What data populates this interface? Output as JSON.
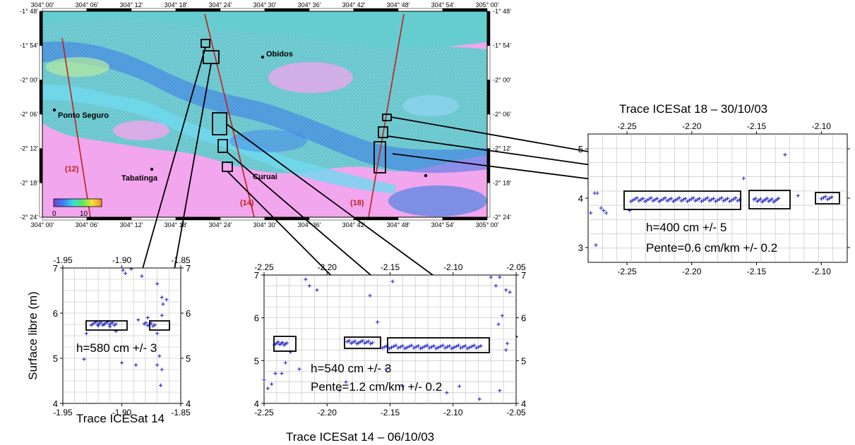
{
  "map": {
    "top_ticks": [
      "304° 00'",
      "304° 06'",
      "304° 12'",
      "304° 18'",
      "304° 24'",
      "304° 30'",
      "304° 36'",
      "304° 42'",
      "304° 48'",
      "304° 54'",
      "305° 00'"
    ],
    "bottom_ticks": [
      "304° 00'",
      "304° 06'",
      "304° 12'",
      "304° 18'",
      "304° 24'",
      "304° 30'",
      "304° 36'",
      "304° 42'",
      "304° 48'",
      "304° 54'",
      "305° 00'"
    ],
    "left_ticks": [
      "-1° 48'",
      "-1° 54'",
      "-2° 00'",
      "-2° 06'",
      "-2° 12'",
      "-2° 18'",
      "-2° 24'"
    ],
    "right_ticks": [
      "-1° 48'",
      "-1° 54'",
      "-2° 00'",
      "-2° 06'",
      "-2° 12'",
      "-2° 18'",
      "-2° 24'"
    ],
    "places": [
      {
        "name": "Obidos"
      },
      {
        "name": "Ponto Seguro"
      },
      {
        "name": "Tabatinga"
      },
      {
        "name": "Curuai"
      }
    ],
    "tracks": [
      "(12)",
      "(14)",
      "(18)"
    ],
    "colorbar": {
      "min": "0",
      "max": "10"
    },
    "colors": {
      "background": "#f2a6ee",
      "track": "#c0201a",
      "track_label": "#c0201a"
    }
  },
  "panel_bl": {
    "top_ticks": [
      "-1.95",
      "-1.90",
      "-1.85"
    ],
    "bottom_ticks": [
      "-1.95",
      "-1.90",
      "-1.85"
    ],
    "y_ticks": [
      "7",
      "6",
      "5",
      "4"
    ],
    "ylabel": "Surface libre (m)",
    "caption": "Trace ICESat 14",
    "annotation": "h=580 cm +/- 3"
  },
  "panel_bm": {
    "top_ticks": [
      "-2.25",
      "-2.20",
      "-2.15",
      "-2.10",
      "-2.05"
    ],
    "bottom_ticks": [
      "-2.25",
      "-2.20",
      "-2.15",
      "-2.10",
      "-2.05"
    ],
    "y_ticks": [
      "7",
      "6",
      "5",
      "4"
    ],
    "caption": "Trace ICESat 14 – 06/10/03",
    "annotation1": "h=540 cm +/- 3",
    "annotation2": "Pente=1.2 cm/km +/- 0.2"
  },
  "panel_r": {
    "title": "Trace ICESat 18 – 30/10/03",
    "top_ticks": [
      "-2.25",
      "-2.20",
      "-2.15",
      "-2.10"
    ],
    "bottom_ticks": [
      "-2.25",
      "-2.20",
      "-2.15",
      "-2.10"
    ],
    "y_ticks": [
      "5",
      "4",
      "3"
    ],
    "annotation1": "h=400 cm +/- 5",
    "annotation2": "Pente=0.6 cm/km +/- 0.2"
  },
  "chart_data": [
    {
      "type": "scatter",
      "caption": "Trace ICESat 14",
      "ylabel": "Surface libre (m)",
      "xlim": [
        -1.95,
        -1.85
      ],
      "ylim": [
        4,
        7
      ],
      "points": [
        [
          -1.932,
          4.98
        ],
        [
          -1.93,
          5.55
        ],
        [
          -1.897,
          6.88
        ],
        [
          -1.899,
          6.95
        ],
        [
          -1.892,
          6.98
        ],
        [
          -1.883,
          6.82
        ],
        [
          -1.878,
          5.9
        ],
        [
          -1.87,
          6.65
        ],
        [
          -1.866,
          6.35
        ],
        [
          -1.865,
          6.2
        ],
        [
          -1.862,
          6.3
        ],
        [
          -1.866,
          5.95
        ],
        [
          -1.87,
          5.55
        ],
        [
          -1.868,
          5.05
        ],
        [
          -1.87,
          4.85
        ],
        [
          -1.866,
          4.75
        ],
        [
          -1.867,
          4.4
        ],
        [
          -1.9,
          4.9
        ],
        [
          -1.888,
          4.85
        ],
        [
          -1.905,
          5.6
        ],
        [
          -1.886,
          5.85
        ],
        [
          -1.91,
          5.7
        ],
        [
          -1.915,
          5.75
        ],
        [
          -1.92,
          5.72
        ]
      ],
      "clusters": [
        {
          "x_range": [
            -1.926,
            -1.905
          ],
          "y": 5.77,
          "count": 16
        },
        {
          "x_range": [
            -1.881,
            -1.872
          ],
          "y": 5.75,
          "count": 7
        }
      ]
    },
    {
      "type": "scatter",
      "caption": "Trace ICESat 14 – 06/10/03",
      "xlim": [
        -2.25,
        -2.05
      ],
      "ylim": [
        4,
        7
      ],
      "points": [
        [
          -2.25,
          4.55
        ],
        [
          -2.247,
          4.35
        ],
        [
          -2.244,
          4.45
        ],
        [
          -2.241,
          4.7
        ],
        [
          -2.236,
          4.7
        ],
        [
          -2.233,
          4.95
        ],
        [
          -2.229,
          5.2
        ],
        [
          -2.222,
          4.8
        ],
        [
          -2.217,
          6.9
        ],
        [
          -2.214,
          6.75
        ],
        [
          -2.208,
          6.65
        ],
        [
          -2.19,
          4.3
        ],
        [
          -2.185,
          4.5
        ],
        [
          -2.166,
          6.52
        ],
        [
          -2.16,
          5.9
        ],
        [
          -2.148,
          6.85
        ],
        [
          -2.153,
          4.8
        ],
        [
          -2.14,
          4.4
        ],
        [
          -2.105,
          4.25
        ],
        [
          -2.095,
          4.4
        ],
        [
          -2.079,
          4.1
        ],
        [
          -2.066,
          6.75
        ],
        [
          -2.07,
          6.95
        ],
        [
          -2.063,
          6.95
        ],
        [
          -2.058,
          6.65
        ],
        [
          -2.061,
          6.05
        ],
        [
          -2.064,
          5.85
        ],
        [
          -2.057,
          5.4
        ],
        [
          -2.058,
          5.25
        ],
        [
          -2.063,
          4.3
        ],
        [
          -2.055,
          6.6
        ]
      ],
      "clusters": [
        {
          "x_range": [
            -2.242,
            -2.232
          ],
          "y": 5.4,
          "count": 10
        },
        {
          "x_range": [
            -2.184,
            -2.164
          ],
          "y": 5.43,
          "count": 14
        },
        {
          "x_range": [
            -2.156,
            -2.078
          ],
          "y": 5.32,
          "count": 45
        }
      ]
    },
    {
      "type": "scatter",
      "title": "Trace ICESat 18 – 30/10/03",
      "xlim": [
        -2.28,
        -2.08
      ],
      "ylim": [
        2.7,
        5.3
      ],
      "points": [
        [
          -2.278,
          3.7
        ],
        [
          -2.275,
          4.1
        ],
        [
          -2.273,
          4.1
        ],
        [
          -2.27,
          3.8
        ],
        [
          -2.268,
          3.75
        ],
        [
          -2.266,
          3.7
        ],
        [
          -2.274,
          3.05
        ],
        [
          -2.248,
          3.75
        ],
        [
          -2.128,
          4.88
        ],
        [
          -2.16,
          4.4
        ],
        [
          -2.118,
          4.05
        ]
      ],
      "clusters": [
        {
          "x_range": [
            -2.247,
            -2.163
          ],
          "y": 3.97,
          "count": 55
        },
        {
          "x_range": [
            -2.152,
            -2.133
          ],
          "y": 3.96,
          "count": 16
        },
        {
          "x_range": [
            -2.1,
            -2.092
          ],
          "y": 4.01,
          "count": 6
        }
      ]
    }
  ]
}
